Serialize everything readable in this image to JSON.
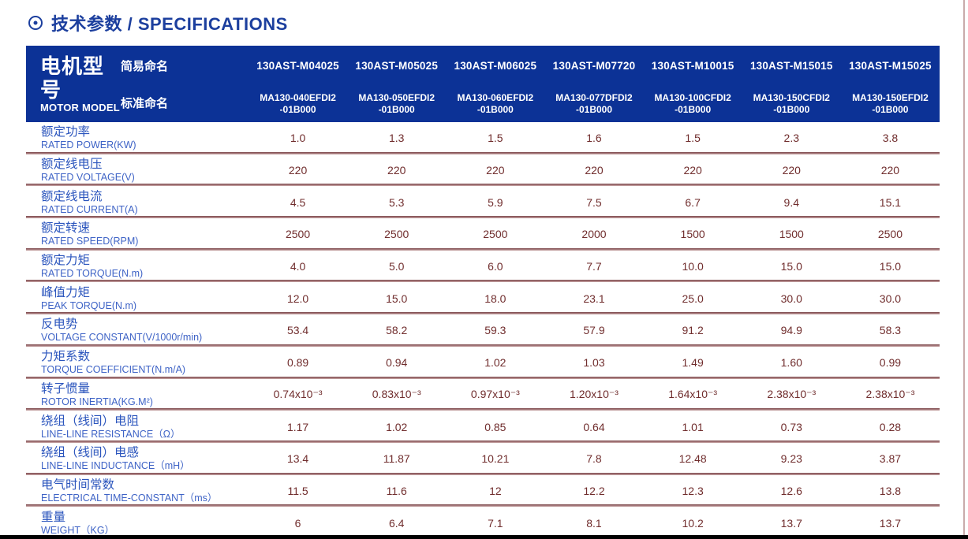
{
  "page": {
    "title": "技术参数 / SPECIFICATIONS"
  },
  "colors": {
    "title_blue": "#1c3f9e",
    "header_bg": "#0c3296",
    "header_text": "#ffffff",
    "label_zh_blue": "#2b55bd",
    "label_en_blue": "#3e63c6",
    "value_maroon": "#702d2d",
    "separator_dark": "#7c484c",
    "separator_light": "#cbaaaa",
    "page_edge": "#c9abab",
    "bottom_bar": "#000000"
  },
  "table": {
    "header": {
      "model_label_zh": "电机型号",
      "model_label_en": "MOTOR MODEL",
      "simple_name_label": "简易命名",
      "standard_name_label": "标准命名",
      "models": [
        {
          "simple": "130AST-M04025",
          "standard_line1": "MA130-040EFDI2",
          "standard_line2": "-01B000"
        },
        {
          "simple": "130AST-M05025",
          "standard_line1": "MA130-050EFDI2",
          "standard_line2": "-01B000"
        },
        {
          "simple": "130AST-M06025",
          "standard_line1": "MA130-060EFDI2",
          "standard_line2": "-01B000"
        },
        {
          "simple": "130AST-M07720",
          "standard_line1": "MA130-077DFDI2",
          "standard_line2": "-01B000"
        },
        {
          "simple": "130AST-M10015",
          "standard_line1": "MA130-100CFDI2",
          "standard_line2": "-01B000"
        },
        {
          "simple": "130AST-M15015",
          "standard_line1": "MA130-150CFDI2",
          "standard_line2": "-01B000"
        },
        {
          "simple": "130AST-M15025",
          "standard_line1": "MA130-150EFDI2",
          "standard_line2": "-01B000"
        }
      ]
    },
    "rows": [
      {
        "label_zh": "额定功率",
        "label_en": "RATED POWER(KW)",
        "values": [
          "1.0",
          "1.3",
          "1.5",
          "1.6",
          "1.5",
          "2.3",
          "3.8"
        ]
      },
      {
        "label_zh": "额定线电压",
        "label_en": "RATED VOLTAGE(V)",
        "values": [
          "220",
          "220",
          "220",
          "220",
          "220",
          "220",
          "220"
        ]
      },
      {
        "label_zh": "额定线电流",
        "label_en": "RATED CURRENT(A)",
        "values": [
          "4.5",
          "5.3",
          "5.9",
          "7.5",
          "6.7",
          "9.4",
          "15.1"
        ]
      },
      {
        "label_zh": "额定转速",
        "label_en": "RATED SPEED(RPM)",
        "values": [
          "2500",
          "2500",
          "2500",
          "2000",
          "1500",
          "1500",
          "2500"
        ]
      },
      {
        "label_zh": "额定力矩",
        "label_en": "RATED TORQUE(N.m)",
        "values": [
          "4.0",
          "5.0",
          "6.0",
          "7.7",
          "10.0",
          "15.0",
          "15.0"
        ]
      },
      {
        "label_zh": "峰值力矩",
        "label_en": "PEAK TORQUE(N.m)",
        "values": [
          "12.0",
          "15.0",
          "18.0",
          "23.1",
          "25.0",
          "30.0",
          "30.0"
        ]
      },
      {
        "label_zh": "反电势",
        "label_en": "VOLTAGE CONSTANT(V/1000r/min)",
        "values": [
          "53.4",
          "58.2",
          "59.3",
          "57.9",
          "91.2",
          "94.9",
          "58.3"
        ]
      },
      {
        "label_zh": "力矩系数",
        "label_en": "TORQUE COEFFICIENT(N.m/A)",
        "values": [
          "0.89",
          "0.94",
          "1.02",
          "1.03",
          "1.49",
          "1.60",
          "0.99"
        ]
      },
      {
        "label_zh": "转子惯量",
        "label_en": "ROTOR INERTIA(KG.M²)",
        "values": [
          "0.74x10⁻³",
          "0.83x10⁻³",
          "0.97x10⁻³",
          "1.20x10⁻³",
          "1.64x10⁻³",
          "2.38x10⁻³",
          "2.38x10⁻³"
        ]
      },
      {
        "label_zh": "绕组（线间）电阻",
        "label_en": "LINE-LINE RESISTANCE（Ω）",
        "values": [
          "1.17",
          "1.02",
          "0.85",
          "0.64",
          "1.01",
          "0.73",
          "0.28"
        ]
      },
      {
        "label_zh": "绕组（线间）电感",
        "label_en": "LINE-LINE INDUCTANCE（mH）",
        "values": [
          "13.4",
          "11.87",
          "10.21",
          "7.8",
          "12.48",
          "9.23",
          "3.87"
        ]
      },
      {
        "label_zh": "电气时间常数",
        "label_en": "ELECTRICAL TIME-CONSTANT（ms）",
        "values": [
          "11.5",
          "11.6",
          "12",
          "12.2",
          "12.3",
          "12.6",
          "13.8"
        ]
      },
      {
        "label_zh": "重量",
        "label_en": "WEIGHT（KG）",
        "values": [
          "6",
          "6.4",
          "7.1",
          "8.1",
          "10.2",
          "13.7",
          "13.7"
        ]
      }
    ]
  }
}
